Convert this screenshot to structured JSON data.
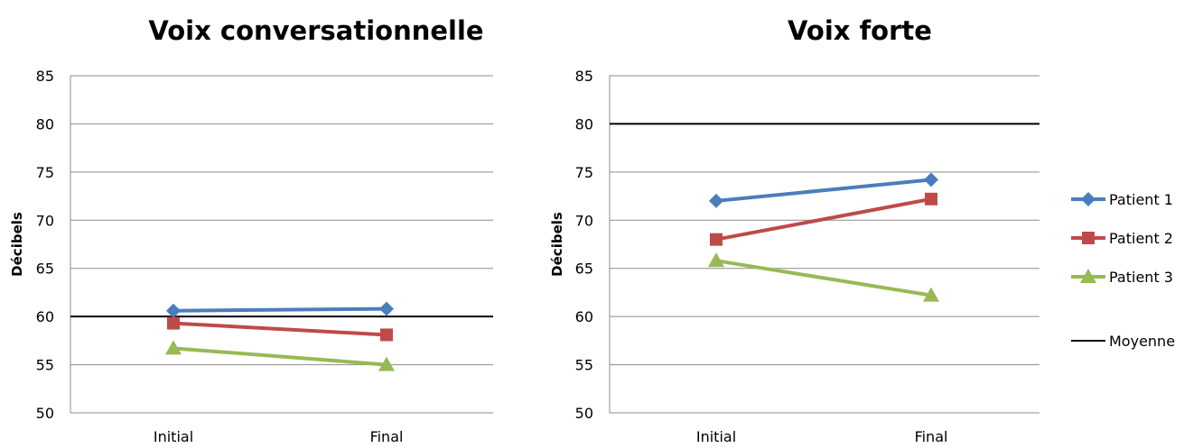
{
  "chart_data": [
    {
      "type": "line",
      "title": "Voix conversationnelle",
      "ylabel": "Décibels",
      "xlabel": "",
      "categories": [
        "Initial",
        "Final"
      ],
      "ylim": [
        50,
        85
      ],
      "yticks": [
        50,
        55,
        60,
        65,
        70,
        75,
        80,
        85
      ],
      "grid": true,
      "series": [
        {
          "name": "Patient 1",
          "values": [
            60.6,
            60.8
          ],
          "color": "#4a7ebb",
          "marker": "diamond"
        },
        {
          "name": "Patient 2",
          "values": [
            59.3,
            58.1
          ],
          "color": "#be4b48",
          "marker": "square"
        },
        {
          "name": "Patient 3",
          "values": [
            56.7,
            55.0
          ],
          "color": "#98b954",
          "marker": "triangle"
        }
      ],
      "reference_line": {
        "name": "Moyenne",
        "value": 60,
        "color": "#000000"
      }
    },
    {
      "type": "line",
      "title": "Voix forte",
      "ylabel": "Décibels",
      "xlabel": "",
      "categories": [
        "Initial",
        "Final"
      ],
      "ylim": [
        50,
        85
      ],
      "yticks": [
        50,
        55,
        60,
        65,
        70,
        75,
        80,
        85
      ],
      "grid": true,
      "series": [
        {
          "name": "Patient 1",
          "values": [
            72.0,
            74.2
          ],
          "color": "#4a7ebb",
          "marker": "diamond"
        },
        {
          "name": "Patient 2",
          "values": [
            68.0,
            72.2
          ],
          "color": "#be4b48",
          "marker": "square"
        },
        {
          "name": "Patient 3",
          "values": [
            65.8,
            62.2
          ],
          "color": "#98b954",
          "marker": "triangle"
        }
      ],
      "reference_line": {
        "name": "Moyenne",
        "value": 80,
        "color": "#000000"
      }
    }
  ],
  "legend": {
    "placement": "right",
    "items": [
      {
        "name": "Patient 1",
        "color": "#4a7ebb",
        "marker": "diamond"
      },
      {
        "name": "Patient 2",
        "color": "#be4b48",
        "marker": "square"
      },
      {
        "name": "Patient 3",
        "color": "#98b954",
        "marker": "triangle"
      },
      {
        "name": "Moyenne",
        "color": "#000000",
        "marker": "none"
      }
    ]
  }
}
